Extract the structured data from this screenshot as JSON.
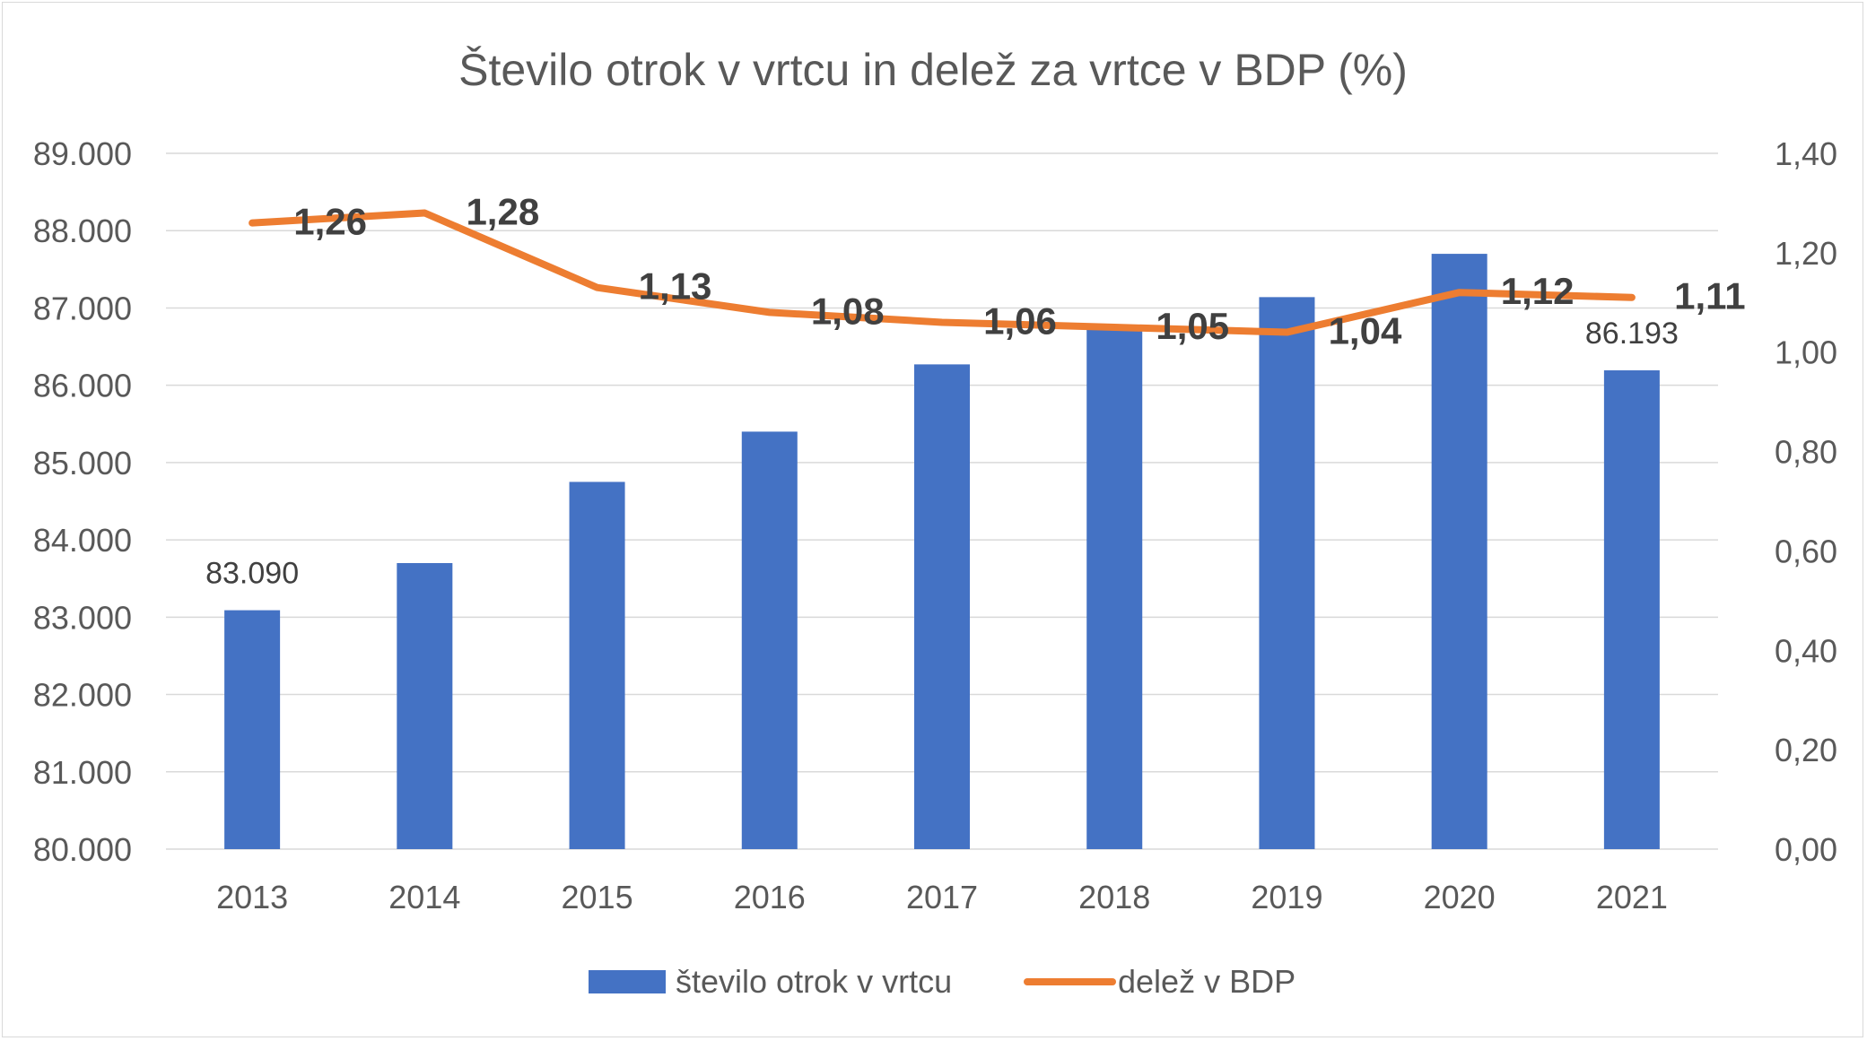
{
  "chart_data": {
    "type": "bar",
    "title": "Število otrok v vrtcu in delež za vrtce v BDP (%)",
    "categories": [
      "2013",
      "2014",
      "2015",
      "2016",
      "2017",
      "2018",
      "2019",
      "2020",
      "2021"
    ],
    "series": [
      {
        "name": "število otrok v vrtcu",
        "type": "bar",
        "axis": "left",
        "color": "#4472C4",
        "values": [
          83090,
          83700,
          84750,
          85400,
          86270,
          86760,
          87140,
          87700,
          86193
        ],
        "data_labels": [
          "83.090",
          "",
          "",
          "",
          "",
          "",
          "",
          "",
          "86.193"
        ]
      },
      {
        "name": "delež v BDP",
        "type": "line",
        "axis": "right",
        "color": "#ED7D31",
        "values": [
          1.26,
          1.28,
          1.13,
          1.08,
          1.06,
          1.05,
          1.04,
          1.12,
          1.11
        ],
        "data_labels": [
          "1,26",
          "1,28",
          "1,13",
          "1,08",
          "1,06",
          "1,05",
          "1,04",
          "1,12",
          "1,11"
        ]
      }
    ],
    "y_left": {
      "lim": [
        80000,
        89000
      ],
      "ticks": [
        80000,
        81000,
        82000,
        83000,
        84000,
        85000,
        86000,
        87000,
        88000,
        89000
      ],
      "tick_labels": [
        "80.000",
        "81.000",
        "82.000",
        "83.000",
        "84.000",
        "85.000",
        "86.000",
        "87.000",
        "88.000",
        "89.000"
      ]
    },
    "y_right": {
      "lim": [
        0,
        1.4
      ],
      "ticks": [
        0,
        0.2,
        0.4,
        0.6,
        0.8,
        1.0,
        1.2,
        1.4
      ],
      "tick_labels": [
        "0,00",
        "0,20",
        "0,40",
        "0,60",
        "0,80",
        "1,00",
        "1,20",
        "1,40"
      ]
    },
    "grid": true,
    "legend": "bottom",
    "text_color": "#595959",
    "grid_color": "#d9d9d9"
  }
}
